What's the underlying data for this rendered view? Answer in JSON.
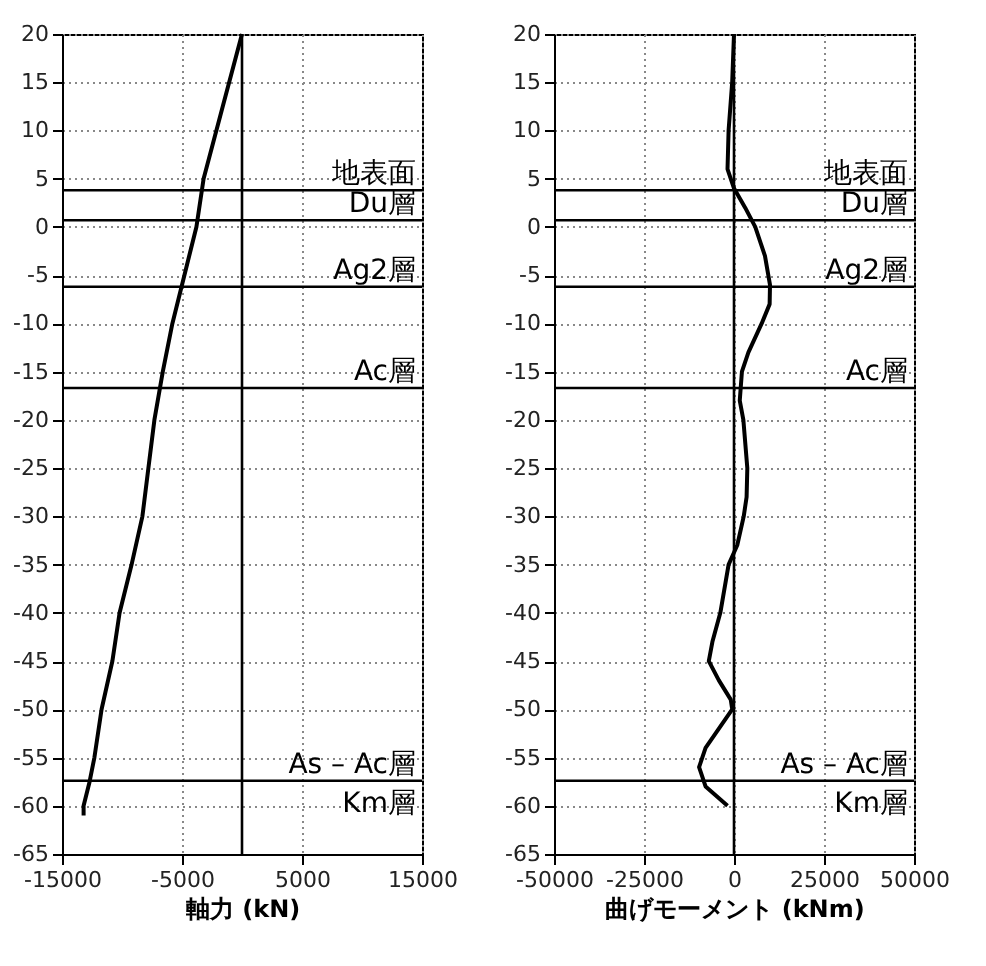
{
  "chart_data": [
    {
      "type": "line",
      "xlabel": "軸力 (kN)",
      "xlim": [
        -15000,
        15000
      ],
      "xticks": [
        -15000,
        -5000,
        5000,
        15000
      ],
      "ylim": [
        -65,
        20
      ],
      "yticks": [
        -65,
        -60,
        -55,
        -50,
        -45,
        -40,
        -35,
        -30,
        -25,
        -20,
        -15,
        -10,
        -5,
        0,
        5,
        10,
        15,
        20
      ],
      "grid": true,
      "series": [
        {
          "color": "#000000",
          "x": [
            0,
            -1600,
            -3200,
            -3800,
            -4800,
            -5800,
            -6600,
            -7300,
            -7800,
            -8300,
            -9200,
            -10200,
            -10800,
            -11700,
            -12300,
            -12700,
            -13200,
            -13200
          ],
          "values": [
            20,
            12.5,
            5,
            0,
            -5,
            -10,
            -15,
            -20,
            -25,
            -30,
            -35,
            -40,
            -45,
            -50,
            -55,
            -57.5,
            -60,
            -61
          ]
        }
      ],
      "ref_lines": [
        {
          "axis": "x",
          "value": 0
        },
        {
          "axis": "y",
          "value": 3.8,
          "label": "地表面"
        },
        {
          "axis": "y",
          "value": 0.7,
          "label": "Du層"
        },
        {
          "axis": "y",
          "value": -6.2,
          "label": "Ag2層"
        },
        {
          "axis": "y",
          "value": -16.7,
          "label": "Ac層"
        },
        {
          "axis": "y",
          "value": -57.4,
          "label": "As – Ac層"
        }
      ],
      "annotations": [
        "Km層"
      ]
    },
    {
      "type": "line",
      "xlabel": "曲げモーメント (kNm)",
      "xlim": [
        -50000,
        50000
      ],
      "xticks": [
        -50000,
        -25000,
        0,
        25000,
        50000
      ],
      "ylim": [
        -65,
        20
      ],
      "yticks": [
        -65,
        -60,
        -55,
        -50,
        -45,
        -40,
        -35,
        -30,
        -25,
        -20,
        -15,
        -10,
        -5,
        0,
        5,
        10,
        15,
        20
      ],
      "grid": true,
      "series": [
        {
          "color": "#000000",
          "x": [
            0,
            -500,
            -1500,
            -1800,
            0,
            3100,
            5900,
            8600,
            10000,
            9900,
            7700,
            4000,
            2200,
            1600,
            2600,
            3700,
            3500,
            2700,
            900,
            -1500,
            -3800,
            -6000,
            -7000,
            -4200,
            -900,
            -500,
            -4200,
            -7900,
            -9700,
            -7900,
            -1800
          ],
          "values": [
            20,
            15,
            10,
            6,
            4,
            2,
            0,
            -3,
            -6,
            -8,
            -10,
            -13,
            -15,
            -18,
            -20,
            -25,
            -28,
            -30,
            -33,
            -35,
            -40,
            -43,
            -45,
            -47,
            -49,
            -50,
            -52,
            -54,
            -56,
            -58,
            -60
          ]
        }
      ],
      "ref_lines": [
        {
          "axis": "x",
          "value": 0
        },
        {
          "axis": "y",
          "value": 3.8,
          "label": "地表面"
        },
        {
          "axis": "y",
          "value": 0.7,
          "label": "Du層"
        },
        {
          "axis": "y",
          "value": -6.2,
          "label": "Ag2層"
        },
        {
          "axis": "y",
          "value": -16.7,
          "label": "Ac層"
        },
        {
          "axis": "y",
          "value": -57.4,
          "label": "As – Ac層"
        }
      ],
      "annotations": [
        "Km層"
      ]
    }
  ]
}
